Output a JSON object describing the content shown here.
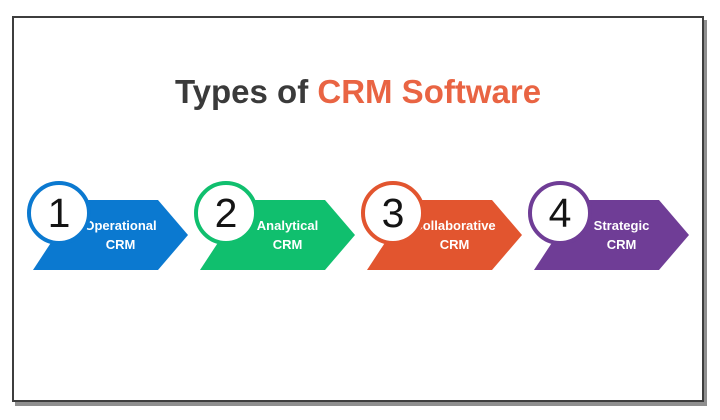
{
  "title": {
    "prefix": "Types of",
    "highlight": "CRM Software"
  },
  "palette": {
    "background": "#ffffff",
    "frame_border": "#3e3e3e",
    "frame_shadow": "#8f8f8f",
    "title_text": "#3a3a3a",
    "title_highlight": "#e96443",
    "step_label_text": "#ffffff",
    "step_number_text": "#141414"
  },
  "steps": [
    {
      "number": "1",
      "line1": "Operational",
      "line2": "CRM",
      "color": "#0b79d0"
    },
    {
      "number": "2",
      "line1": "Analytical",
      "line2": "CRM",
      "color": "#10bf6e"
    },
    {
      "number": "3",
      "line1": "Collaborative",
      "line2": "CRM",
      "color": "#e2552f"
    },
    {
      "number": "4",
      "line1": "Strategic",
      "line2": "CRM",
      "color": "#6f3d96"
    }
  ]
}
